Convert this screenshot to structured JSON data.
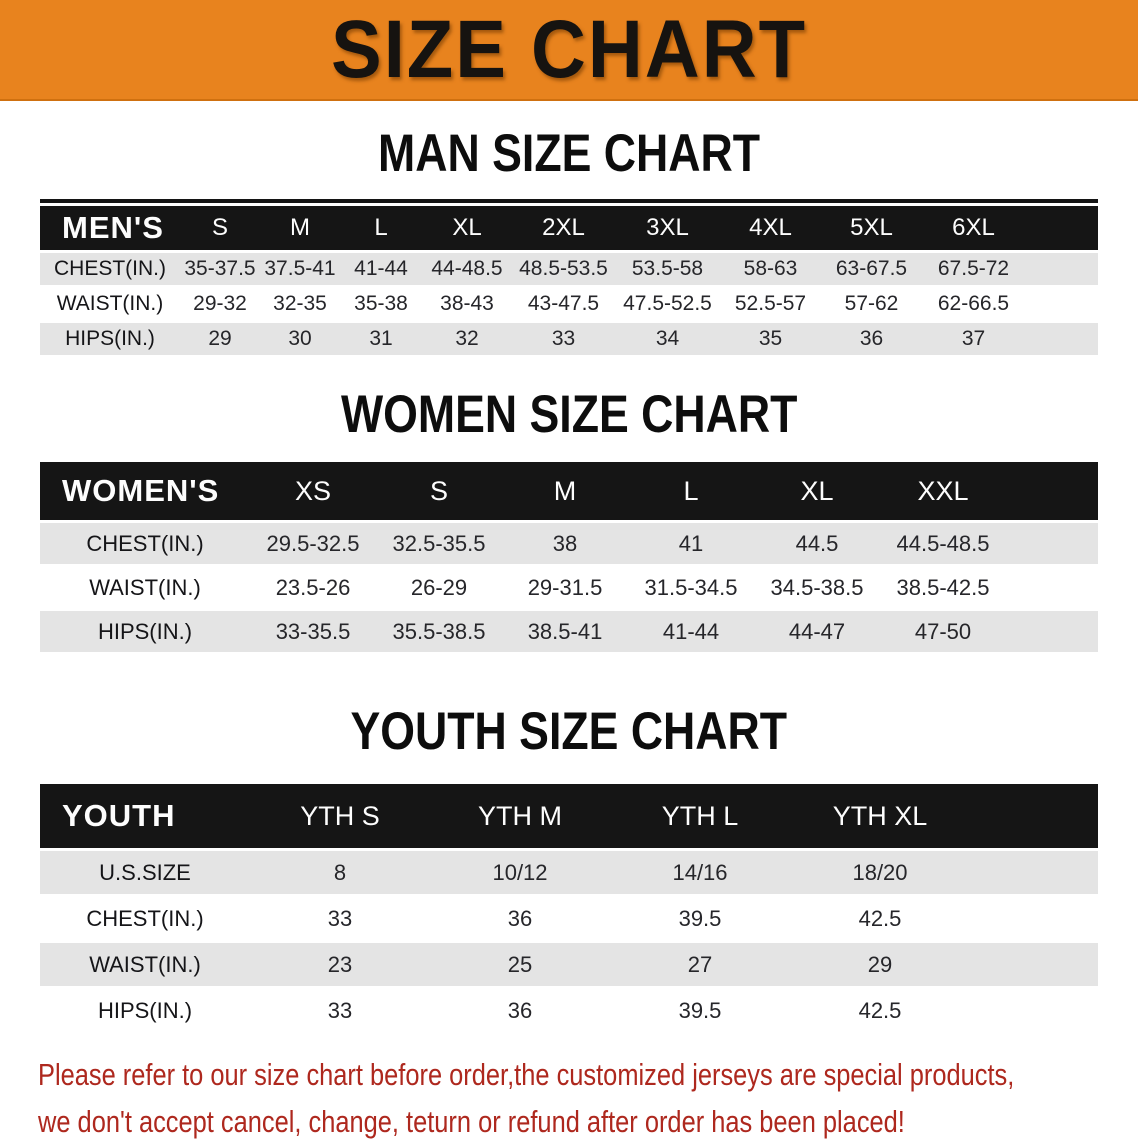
{
  "banner": {
    "title": "SIZE CHART"
  },
  "sections": [
    {
      "heading": "MAN SIZE CHART",
      "corner_label": "MEN'S",
      "columns": [
        "S",
        "M",
        "L",
        "XL",
        "2XL",
        "3XL",
        "4XL",
        "5XL",
        "6XL"
      ],
      "rows": [
        {
          "label": "CHEST(IN.)",
          "values": [
            "35-37.5",
            "37.5-41",
            "41-44",
            "44-48.5",
            "48.5-53.5",
            "53.5-58",
            "58-63",
            "63-67.5",
            "67.5-72"
          ]
        },
        {
          "label": "WAIST(IN.)",
          "values": [
            "29-32",
            "32-35",
            "35-38",
            "38-43",
            "43-47.5",
            "47.5-52.5",
            "52.5-57",
            "57-62",
            "62-66.5"
          ]
        },
        {
          "label": "HIPS(IN.)",
          "values": [
            "29",
            "30",
            "31",
            "32",
            "33",
            "34",
            "35",
            "36",
            "37"
          ]
        }
      ]
    },
    {
      "heading": "WOMEN SIZE CHART",
      "corner_label": "WOMEN'S",
      "columns": [
        "XS",
        "S",
        "M",
        "L",
        "XL",
        "XXL"
      ],
      "rows": [
        {
          "label": "CHEST(IN.)",
          "values": [
            "29.5-32.5",
            "32.5-35.5",
            "38",
            "41",
            "44.5",
            "44.5-48.5"
          ]
        },
        {
          "label": "WAIST(IN.)",
          "values": [
            "23.5-26",
            "26-29",
            "29-31.5",
            "31.5-34.5",
            "34.5-38.5",
            "38.5-42.5"
          ]
        },
        {
          "label": "HIPS(IN.)",
          "values": [
            "33-35.5",
            "35.5-38.5",
            "38.5-41",
            "41-44",
            "44-47",
            "47-50"
          ]
        }
      ]
    },
    {
      "heading": "YOUTH SIZE CHART",
      "corner_label": "YOUTH",
      "columns": [
        "YTH S",
        "YTH M",
        "YTH L",
        "YTH XL"
      ],
      "rows": [
        {
          "label": "U.S.SIZE",
          "values": [
            "8",
            "10/12",
            "14/16",
            "18/20"
          ]
        },
        {
          "label": "CHEST(IN.)",
          "values": [
            "33",
            "36",
            "39.5",
            "42.5"
          ]
        },
        {
          "label": "WAIST(IN.)",
          "values": [
            "23",
            "25",
            "27",
            "29"
          ]
        },
        {
          "label": "HIPS(IN.)",
          "values": [
            "33",
            "36",
            "39.5",
            "42.5"
          ]
        }
      ]
    }
  ],
  "disclaimer": {
    "line1": "Please refer to our size chart before order,the customized jerseys are special products,",
    "line2": "we don't accept cancel, change, teturn or refund after order has been placed!"
  },
  "colors": {
    "banner_background": "#E8831E",
    "table_header_background": "#151515",
    "table_row_stripe": "#E4E4E4",
    "disclaimer_text": "#AE281E"
  }
}
